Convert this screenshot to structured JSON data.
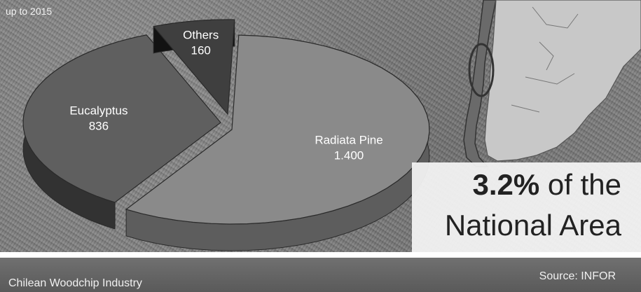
{
  "subtitle": "up to 2015",
  "chart_data": {
    "type": "pie",
    "title": "",
    "categories": [
      "Radiata Pine",
      "Eucalyptus",
      "Others"
    ],
    "values": [
      1400,
      836,
      160
    ],
    "value_labels": [
      "1.400",
      "836",
      "160"
    ],
    "colors": [
      "#8a8a8a",
      "#5f5f5f",
      "#3f3f3f"
    ]
  },
  "callout": {
    "percent": "3.2%",
    "rest_line1": " of the",
    "line2": "National Area"
  },
  "footer": {
    "left": "Chilean Woodchip Industry",
    "right": "Source: INFOR"
  }
}
